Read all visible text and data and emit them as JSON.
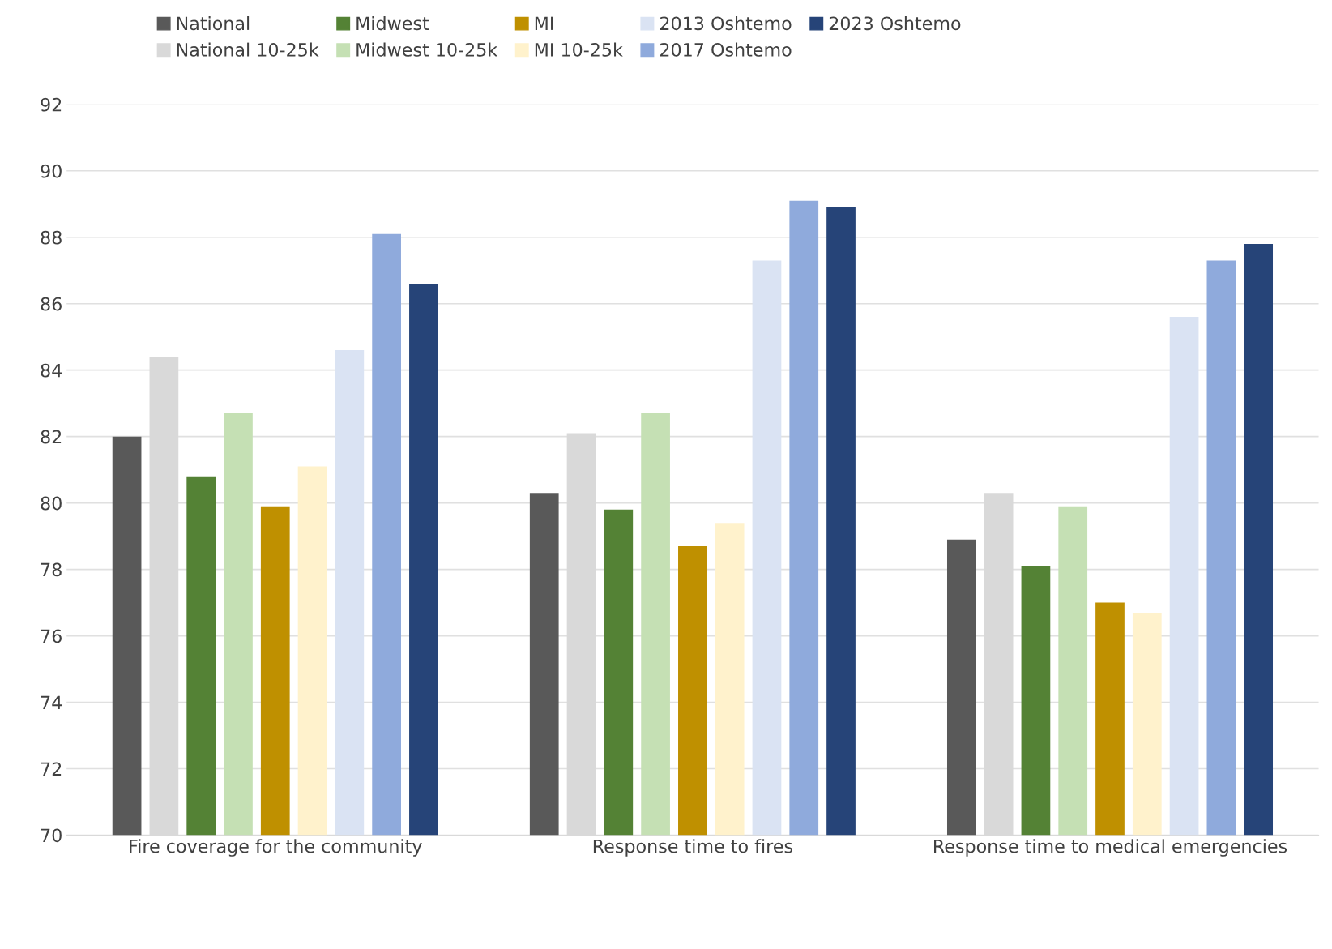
{
  "chart_data": {
    "type": "bar",
    "categories": [
      "Fire coverage for the community",
      "Response time to fires",
      "Response time to medical emergencies"
    ],
    "series": [
      {
        "name": "National",
        "color": "#595959",
        "values": [
          82.0,
          80.3,
          78.9
        ]
      },
      {
        "name": "National 10-25k",
        "color": "#d9d9d9",
        "values": [
          84.4,
          82.1,
          80.3
        ]
      },
      {
        "name": "Midwest",
        "color": "#548235",
        "values": [
          80.8,
          79.8,
          78.1
        ]
      },
      {
        "name": "Midwest 10-25k",
        "color": "#c5e0b4",
        "values": [
          82.7,
          82.7,
          79.9
        ]
      },
      {
        "name": "MI",
        "color": "#bf9000",
        "values": [
          79.9,
          78.7,
          77.0
        ]
      },
      {
        "name": "MI 10-25k",
        "color": "#fff2cc",
        "values": [
          81.1,
          79.4,
          76.7
        ]
      },
      {
        "name": "2013 Oshtemo",
        "color": "#dae3f3",
        "values": [
          84.6,
          87.3,
          85.6
        ]
      },
      {
        "name": "2017 Oshtemo",
        "color": "#8faadc",
        "values": [
          88.1,
          89.1,
          87.3
        ]
      },
      {
        "name": "2023 Oshtemo",
        "color": "#264478",
        "values": [
          86.6,
          88.9,
          87.8
        ]
      }
    ],
    "ylim": [
      70,
      92
    ],
    "yticks": [
      70,
      72,
      74,
      76,
      78,
      80,
      82,
      84,
      86,
      88,
      90,
      92
    ],
    "grid": "y",
    "legend": "top"
  }
}
